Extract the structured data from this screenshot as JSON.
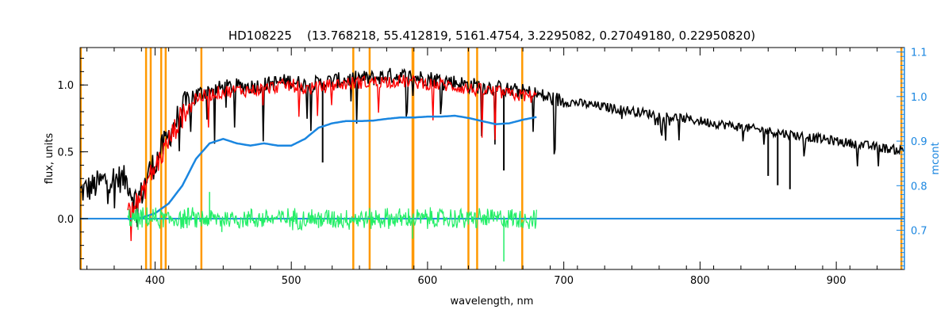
{
  "chart_data": {
    "type": "line",
    "title": "HD108225    (13.768218, 55.412819, 5161.4754, 3.2295082, 0.27049180, 0.22950820)",
    "xlabel": "wavelength, nm",
    "ylabel": "flux, units",
    "ylabel_right": "mcont",
    "xlim": [
      345,
      950
    ],
    "ylim": [
      -0.38,
      1.28
    ],
    "ylim_right": [
      0.612,
      1.11
    ],
    "x_ticks": [
      400,
      500,
      600,
      700,
      800,
      900
    ],
    "y_ticks": [
      0.0,
      0.5,
      1.0
    ],
    "y_ticks_right": [
      0.7,
      0.8,
      0.9,
      1.0,
      1.1
    ],
    "x_tick_labels": [
      "400",
      "500",
      "600",
      "700",
      "800",
      "900"
    ],
    "y_tick_labels": [
      "0.0",
      "0.5",
      "1.0"
    ],
    "y_tick_labels_right": [
      "0.7",
      "0.8",
      "0.9",
      "1.0",
      "1.1"
    ],
    "grid": false,
    "colors": {
      "observed": "#000000",
      "model": "#ff0000",
      "continuum": "#1a86e0",
      "residuals": "#22ee66",
      "lines": "#ff9900"
    },
    "vertical_lines_nm": [
      345.5,
      393.4,
      396.8,
      404.5,
      407.8,
      434.0,
      545.5,
      557.5,
      589.0,
      589.6,
      630.0,
      636.4,
      669.5,
      947.8
    ],
    "observed_flux": {
      "x": [
        345,
        355,
        365,
        375,
        380,
        385,
        390,
        395,
        400,
        405,
        410,
        415,
        420,
        425,
        430,
        440,
        450,
        460,
        470,
        480,
        490,
        500,
        510,
        520,
        530,
        540,
        550,
        560,
        570,
        580,
        590,
        600,
        610,
        620,
        630,
        640,
        650,
        660,
        670,
        680,
        690,
        700,
        720,
        740,
        760,
        780,
        800,
        820,
        840,
        860,
        880,
        900,
        920,
        940,
        950
      ],
      "y": [
        0.2,
        0.24,
        0.3,
        0.3,
        0.28,
        0.14,
        0.18,
        0.34,
        0.42,
        0.52,
        0.62,
        0.72,
        0.82,
        0.88,
        0.93,
        0.96,
        0.98,
        0.99,
        0.99,
        1.0,
        1.02,
        1.03,
        1.0,
        1.01,
        1.03,
        1.04,
        1.05,
        1.05,
        1.07,
        1.07,
        1.06,
        1.05,
        1.04,
        1.02,
        1.0,
        0.99,
        0.98,
        0.96,
        0.95,
        0.93,
        0.9,
        0.88,
        0.85,
        0.82,
        0.79,
        0.76,
        0.73,
        0.7,
        0.67,
        0.64,
        0.61,
        0.58,
        0.55,
        0.52,
        0.51
      ]
    },
    "model_flux": {
      "x": [
        380,
        385,
        390,
        395,
        400,
        405,
        410,
        415,
        420,
        425,
        430,
        440,
        450,
        460,
        470,
        480,
        490,
        500,
        510,
        520,
        530,
        540,
        550,
        560,
        570,
        580,
        590,
        600,
        610,
        620,
        630,
        640,
        650,
        660,
        670,
        680
      ],
      "y": [
        0.12,
        0.1,
        0.15,
        0.3,
        0.38,
        0.48,
        0.58,
        0.68,
        0.78,
        0.85,
        0.9,
        0.93,
        0.95,
        0.96,
        0.96,
        0.97,
        0.99,
        1.0,
        0.97,
        0.98,
        1.0,
        1.01,
        1.02,
        1.02,
        1.03,
        1.03,
        1.02,
        1.01,
        1.0,
        0.99,
        0.97,
        0.96,
        0.95,
        0.93,
        0.92,
        0.91
      ]
    },
    "continuum_model": {
      "x": [
        380,
        390,
        400,
        410,
        420,
        430,
        440,
        450,
        460,
        470,
        480,
        490,
        500,
        510,
        520,
        530,
        540,
        550,
        560,
        570,
        580,
        590,
        600,
        610,
        620,
        630,
        640,
        650,
        660,
        670,
        680
      ],
      "y_right": [
        0.725,
        0.728,
        0.738,
        0.76,
        0.8,
        0.86,
        0.895,
        0.905,
        0.895,
        0.89,
        0.895,
        0.89,
        0.89,
        0.905,
        0.93,
        0.94,
        0.945,
        0.945,
        0.946,
        0.95,
        0.953,
        0.953,
        0.955,
        0.955,
        0.957,
        0.952,
        0.945,
        0.938,
        0.94,
        0.948,
        0.954
      ]
    },
    "continuum_flat": {
      "x": [
        345,
        950
      ],
      "y": [
        0.0,
        0.0
      ]
    },
    "residuals": {
      "x_start": 380,
      "x_end": 680,
      "y_center": 0.0,
      "amplitude": 0.08,
      "spikes": [
        {
          "x": 440,
          "y": 0.2
        },
        {
          "x": 449,
          "y": -0.1
        },
        {
          "x": 520,
          "y": -0.07
        },
        {
          "x": 589,
          "y": -0.15
        },
        {
          "x": 656,
          "y": -0.32
        }
      ]
    }
  }
}
